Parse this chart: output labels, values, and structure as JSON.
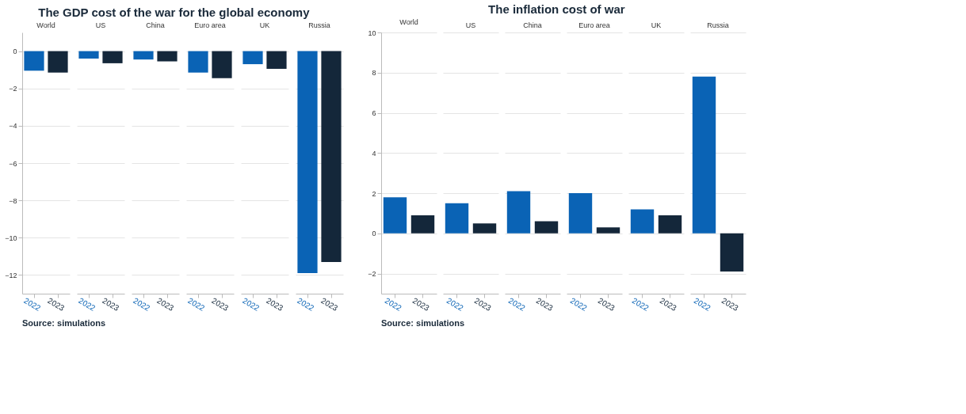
{
  "chart_data": [
    {
      "type": "bar",
      "title": "The GDP cost of the war for the global economy",
      "categories": [
        "World",
        "US",
        "China",
        "Euro area",
        "UK",
        "Russia"
      ],
      "series": [
        {
          "name": "2022",
          "color": "#0a63b5",
          "values": [
            -1.05,
            -0.4,
            -0.45,
            -1.15,
            -0.7,
            -11.9
          ]
        },
        {
          "name": "2023",
          "color": "#14273a",
          "values": [
            -1.15,
            -0.65,
            -0.55,
            -1.45,
            -0.95,
            -11.3
          ]
        }
      ],
      "ylim": [
        -13,
        1
      ],
      "yticks": [
        -12,
        -10,
        -8,
        -6,
        -4,
        -2,
        0
      ],
      "grid": "y",
      "annotations": [
        "Source: simulations"
      ]
    },
    {
      "type": "bar",
      "title": "The inflation cost of war",
      "categories": [
        "World",
        "US",
        "China",
        "Euro area",
        "UK",
        "Russia"
      ],
      "series": [
        {
          "name": "2022",
          "color": "#0a63b5",
          "values": [
            1.8,
            1.5,
            2.1,
            2.0,
            1.2,
            7.8
          ]
        },
        {
          "name": "2023",
          "color": "#14273a",
          "values": [
            0.9,
            0.5,
            0.6,
            0.3,
            0.9,
            -1.9
          ]
        }
      ],
      "ylim": [
        -3,
        10
      ],
      "yticks": [
        -2,
        0,
        2,
        4,
        6,
        8,
        10
      ],
      "grid": "y",
      "annotations": [
        "Source: simulations"
      ]
    }
  ]
}
